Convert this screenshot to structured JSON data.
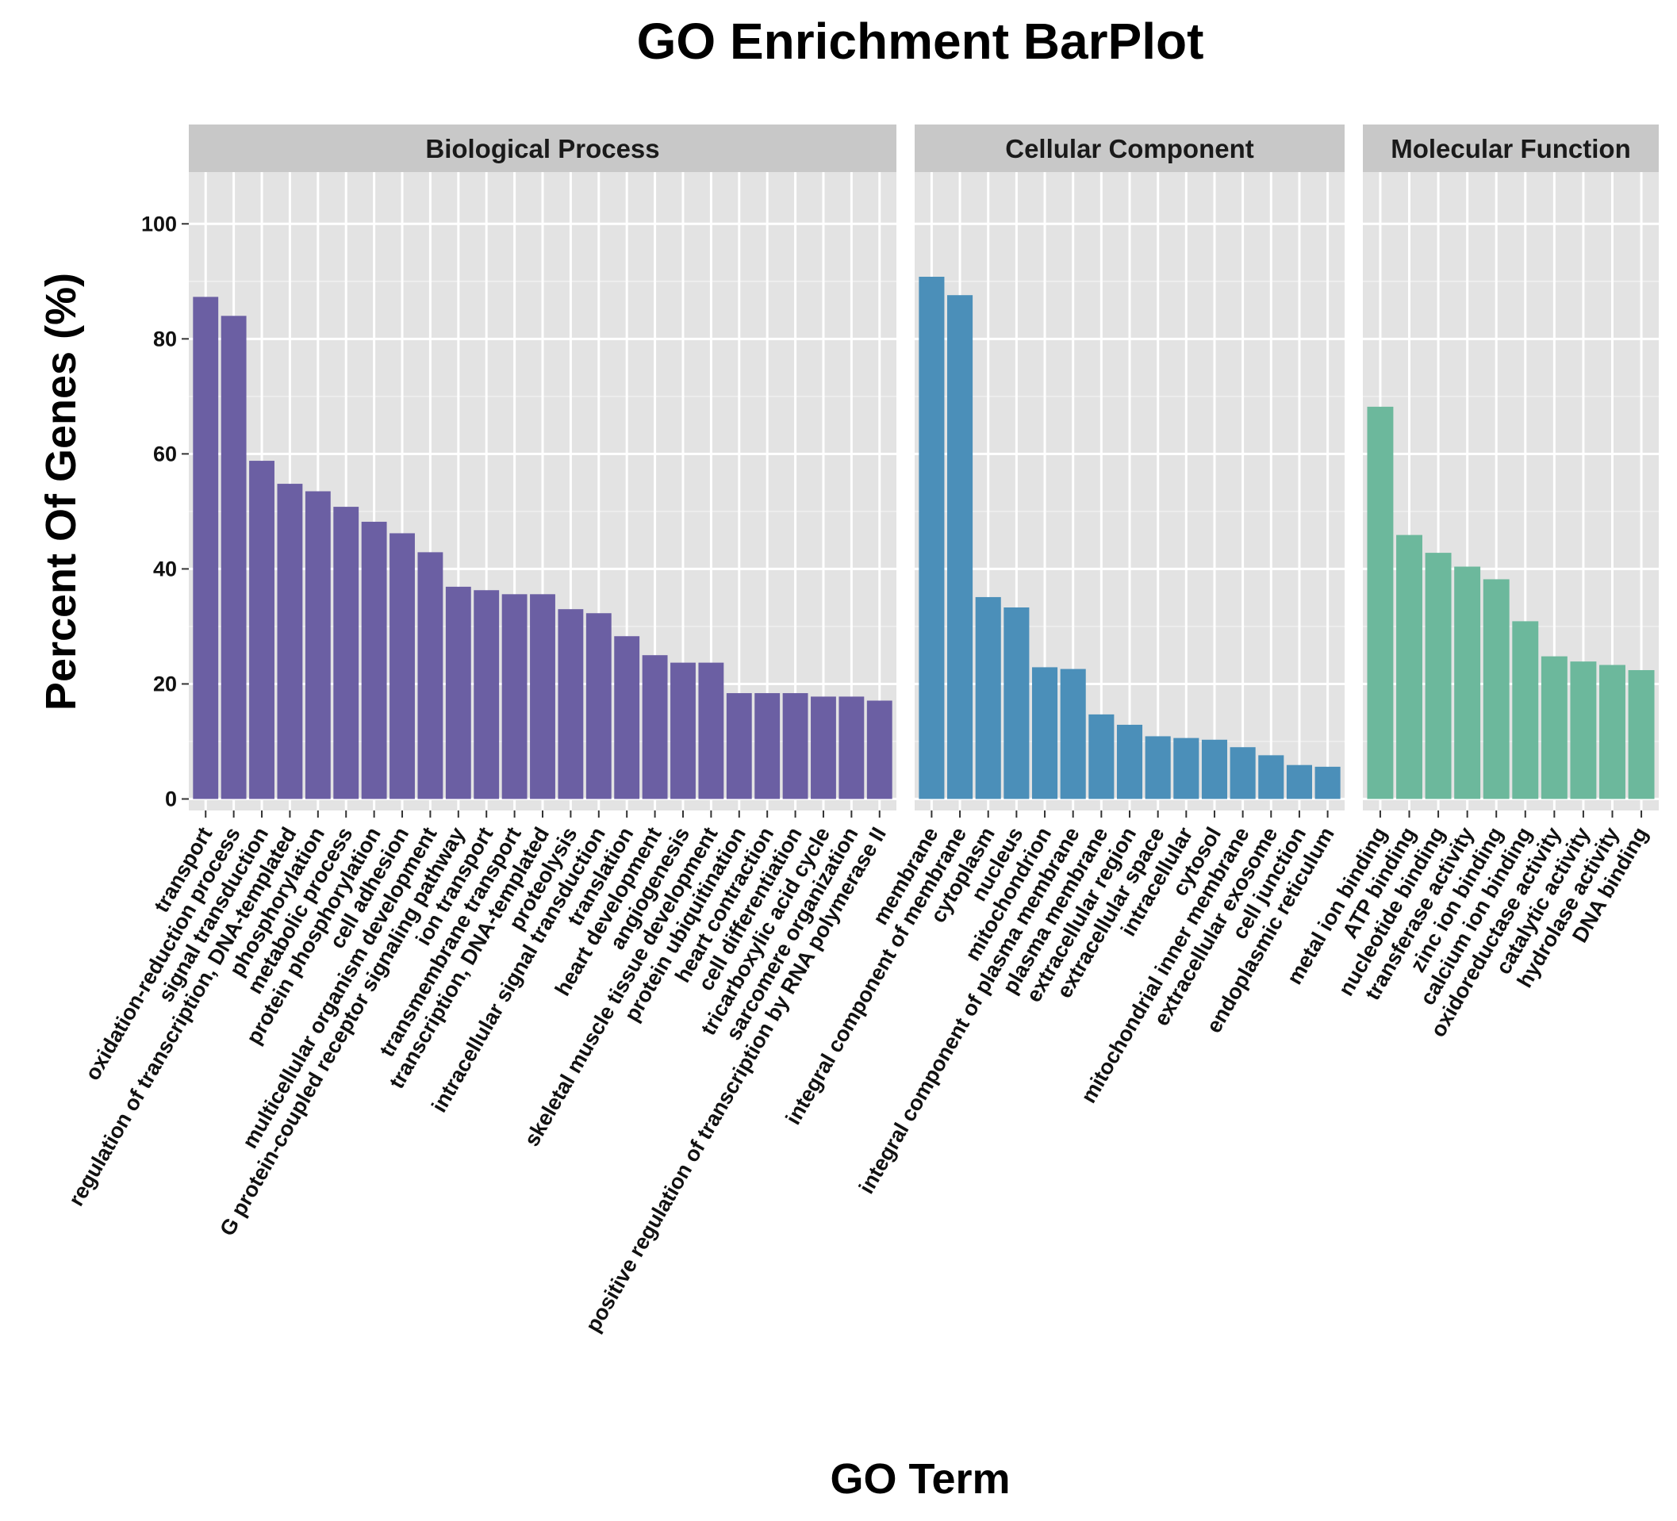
{
  "chart_data": {
    "type": "bar",
    "title": "GO Enrichment BarPlot",
    "xlabel": "GO Term",
    "ylabel": "Percent Of Genes (%)",
    "ylim": [
      -2,
      109
    ],
    "yticks": [
      0,
      20,
      40,
      60,
      80,
      100
    ],
    "grid": true,
    "panels": [
      {
        "name": "Biological Process",
        "color": "#6b5fa3",
        "categories": [
          "transport",
          "oxidation-reduction process",
          "signal transduction",
          "regulation of transcription, DNA-templated",
          "phosphorylation",
          "metabolic process",
          "protein phosphorylation",
          "cell adhesion",
          "multicellular organism development",
          "G protein-coupled receptor signaling pathway",
          "ion transport",
          "transmembrane transport",
          "transcription, DNA-templated",
          "proteolysis",
          "intracellular signal transduction",
          "translation",
          "heart development",
          "angiogenesis",
          "skeletal muscle tissue development",
          "protein ubiquitination",
          "heart contraction",
          "cell differentiation",
          "tricarboxylic acid cycle",
          "sarcomere organization",
          "positive regulation of transcription by RNA polymerase II"
        ],
        "values": [
          87.3,
          84.0,
          58.8,
          54.8,
          53.5,
          50.8,
          48.2,
          46.2,
          42.9,
          36.9,
          36.3,
          35.6,
          35.6,
          33.0,
          32.3,
          28.3,
          25.0,
          23.7,
          23.7,
          18.4,
          18.4,
          18.4,
          17.8,
          17.8,
          17.1
        ]
      },
      {
        "name": "Cellular Component",
        "color": "#4b8fb9",
        "categories": [
          "membrane",
          "integral component of membrane",
          "cytoplasm",
          "nucleus",
          "mitochondrion",
          "integral component of plasma membrane",
          "plasma membrane",
          "extracellular region",
          "extracellular space",
          "intracellular",
          "cytosol",
          "mitochondrial inner membrane",
          "extracellular exosome",
          "cell junction",
          "endoplasmic reticulum"
        ],
        "values": [
          90.8,
          87.6,
          35.1,
          33.3,
          22.9,
          22.6,
          14.7,
          12.9,
          10.9,
          10.6,
          10.3,
          9.0,
          7.6,
          5.9,
          5.6
        ]
      },
      {
        "name": "Molecular Function",
        "color": "#6cb89c",
        "categories": [
          "metal ion binding",
          "ATP binding",
          "nucleotide binding",
          "transferase activity",
          "zinc ion binding",
          "calcium ion binding",
          "oxidoreductase activity",
          "catalytic activity",
          "hydrolase activity",
          "DNA binding"
        ],
        "values": [
          68.2,
          45.9,
          42.8,
          40.4,
          38.2,
          30.9,
          24.8,
          23.9,
          23.3,
          22.4
        ]
      }
    ]
  }
}
